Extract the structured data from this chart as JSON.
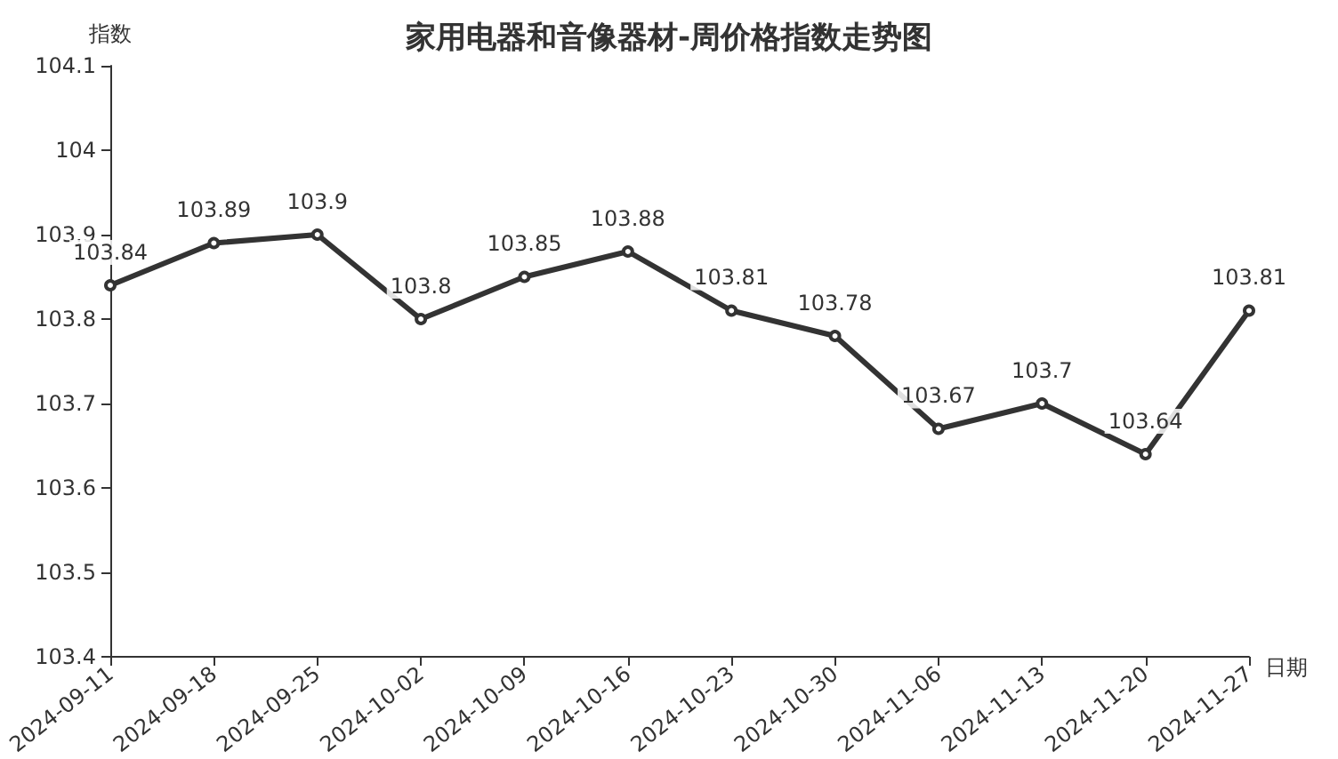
{
  "chart_data": {
    "type": "line",
    "title": "家用电器和音像器材-周价格指数走势图",
    "xlabel": "日期",
    "ylabel": "指数",
    "categories": [
      "2024-09-11",
      "2024-09-18",
      "2024-09-25",
      "2024-10-02",
      "2024-10-09",
      "2024-10-16",
      "2024-10-23",
      "2024-10-30",
      "2024-11-06",
      "2024-11-13",
      "2024-11-20",
      "2024-11-27"
    ],
    "series": [
      {
        "color": "#333333",
        "values": [
          103.84,
          103.89,
          103.9,
          103.8,
          103.85,
          103.88,
          103.81,
          103.78,
          103.67,
          103.7,
          103.64,
          103.81
        ]
      }
    ],
    "ylim": [
      103.4,
      104.1
    ],
    "yticks": [
      103.4,
      103.5,
      103.6,
      103.7,
      103.8,
      103.9,
      104,
      104.1
    ],
    "grid": false,
    "marker": "circle",
    "line_style": "solid",
    "data_labels": true
  }
}
